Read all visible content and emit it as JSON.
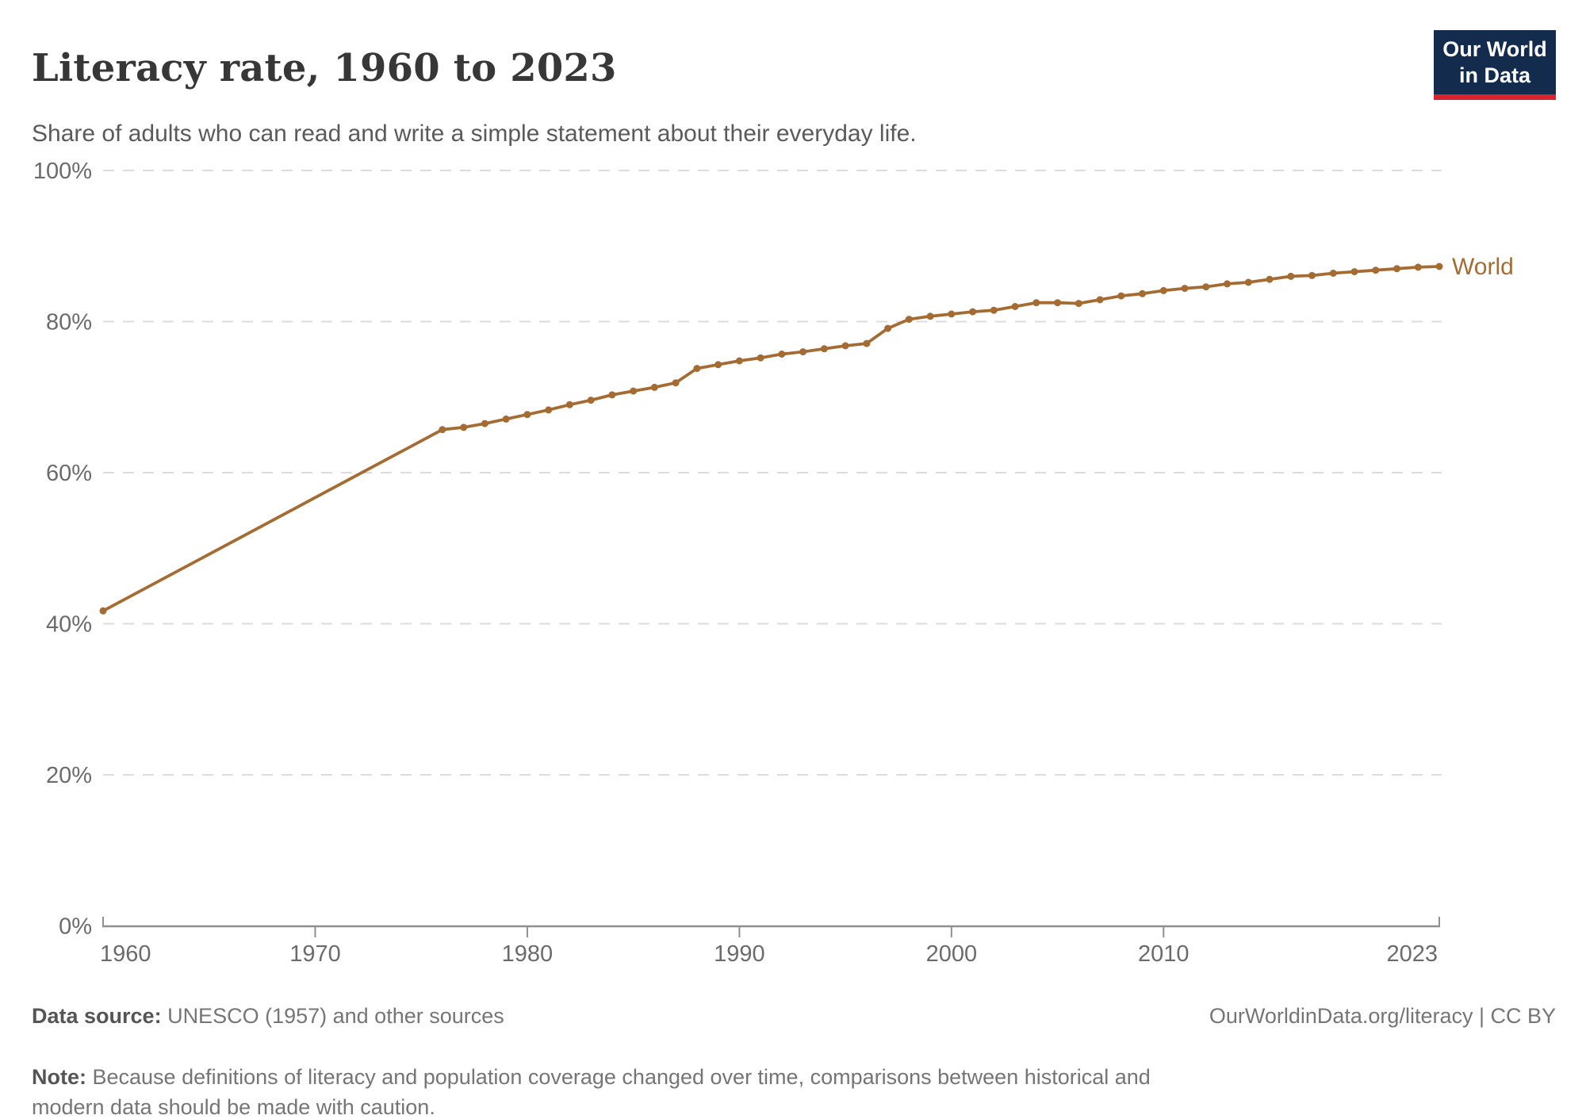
{
  "header": {
    "title": "Literacy rate, 1960 to 2023",
    "subtitle": "Share of adults who can read and write a simple statement about their everyday life.",
    "logo_line1": "Our World",
    "logo_line2": "in Data"
  },
  "chart_data": {
    "type": "line",
    "title": "Literacy rate, 1960 to 2023",
    "xlabel": "",
    "ylabel": "",
    "xlim": [
      1960,
      2023
    ],
    "ylim": [
      0,
      100
    ],
    "grid": "horizontal-dashed",
    "legend_position": "end-of-line",
    "yticks": [
      {
        "value": 0,
        "label": "0%"
      },
      {
        "value": 20,
        "label": "20%"
      },
      {
        "value": 40,
        "label": "40%"
      },
      {
        "value": 60,
        "label": "60%"
      },
      {
        "value": 80,
        "label": "80%"
      },
      {
        "value": 100,
        "label": "100%"
      }
    ],
    "xticks": [
      {
        "year": 1960,
        "label": "1960",
        "align": "start"
      },
      {
        "year": 1970,
        "label": "1970",
        "align": "middle"
      },
      {
        "year": 1980,
        "label": "1980",
        "align": "middle"
      },
      {
        "year": 1990,
        "label": "1990",
        "align": "middle"
      },
      {
        "year": 2000,
        "label": "2000",
        "align": "middle"
      },
      {
        "year": 2010,
        "label": "2010",
        "align": "middle"
      },
      {
        "year": 2023,
        "label": "2023",
        "align": "end"
      }
    ],
    "series": [
      {
        "name": "World",
        "color": "#a46c32",
        "points": [
          [
            1960,
            41.7
          ],
          [
            1976,
            65.7
          ],
          [
            1977,
            66.0
          ],
          [
            1978,
            66.5
          ],
          [
            1979,
            67.1
          ],
          [
            1980,
            67.7
          ],
          [
            1981,
            68.3
          ],
          [
            1982,
            69.0
          ],
          [
            1983,
            69.6
          ],
          [
            1984,
            70.3
          ],
          [
            1985,
            70.8
          ],
          [
            1986,
            71.3
          ],
          [
            1987,
            71.9
          ],
          [
            1988,
            73.8
          ],
          [
            1989,
            74.3
          ],
          [
            1990,
            74.8
          ],
          [
            1991,
            75.2
          ],
          [
            1992,
            75.7
          ],
          [
            1993,
            76.0
          ],
          [
            1994,
            76.4
          ],
          [
            1995,
            76.8
          ],
          [
            1996,
            77.1
          ],
          [
            1997,
            79.1
          ],
          [
            1998,
            80.3
          ],
          [
            1999,
            80.7
          ],
          [
            2000,
            81.0
          ],
          [
            2001,
            81.3
          ],
          [
            2002,
            81.5
          ],
          [
            2003,
            82.0
          ],
          [
            2004,
            82.5
          ],
          [
            2005,
            82.5
          ],
          [
            2006,
            82.4
          ],
          [
            2007,
            82.9
          ],
          [
            2008,
            83.4
          ],
          [
            2009,
            83.7
          ],
          [
            2010,
            84.1
          ],
          [
            2011,
            84.4
          ],
          [
            2012,
            84.6
          ],
          [
            2013,
            85.0
          ],
          [
            2014,
            85.2
          ],
          [
            2015,
            85.6
          ],
          [
            2016,
            86.0
          ],
          [
            2017,
            86.1
          ],
          [
            2018,
            86.4
          ],
          [
            2019,
            86.6
          ],
          [
            2020,
            86.8
          ],
          [
            2021,
            87.0
          ],
          [
            2022,
            87.2
          ],
          [
            2023,
            87.3
          ]
        ]
      }
    ],
    "colors": {
      "gridline": "#dcdcdc",
      "axis": "#8f8f8f",
      "tick_label": "#6b6b6b"
    }
  },
  "footer": {
    "source_label": "Data source:",
    "source_text": " UNESCO (1957) and other sources",
    "attribution": "OurWorldinData.org/literacy | CC BY",
    "note_label": "Note:",
    "note_text": " Because definitions of literacy and population coverage changed over time, comparisons between historical and modern data should be made with caution."
  }
}
